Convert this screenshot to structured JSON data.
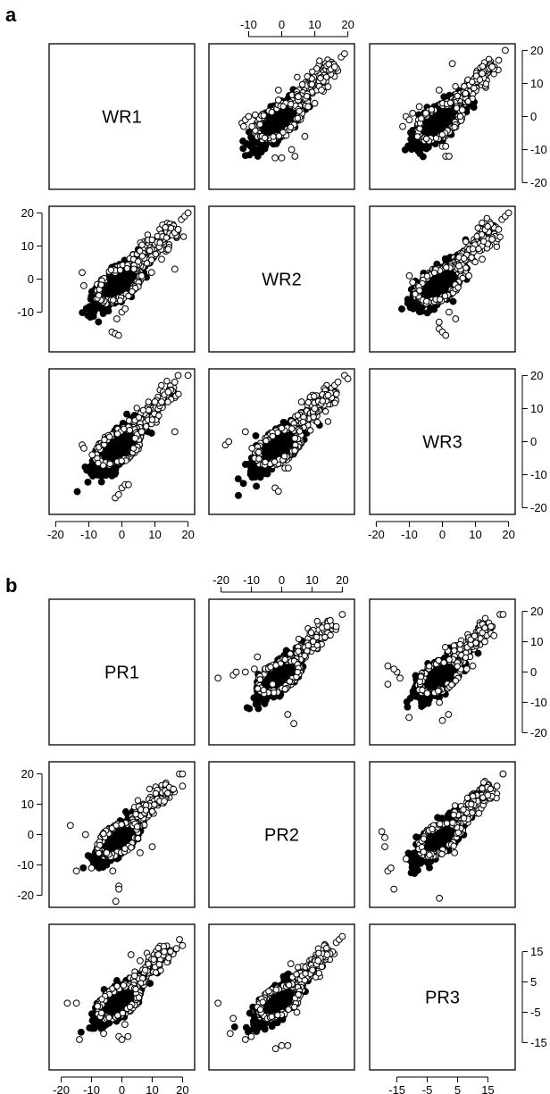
{
  "figure": {
    "panel_letters": [
      "a",
      "b"
    ]
  },
  "chart_data": [
    {
      "type": "scatter",
      "panel": "a",
      "variables": [
        "WR1",
        "WR2",
        "WR3"
      ],
      "layout": "scatterplot-matrix",
      "axis_range": [
        -20,
        20
      ],
      "tick_values": [
        -20,
        -10,
        0,
        10,
        20
      ],
      "tick_labels": [
        "-20",
        "-10",
        "0",
        "10",
        "20"
      ],
      "grid": false,
      "pairs": [
        {
          "row": 0,
          "col": 1,
          "x": "WR2",
          "y": "WR1",
          "x_values": [
            -12,
            -11.5,
            -11,
            -10,
            -9,
            -8,
            5,
            8,
            5,
            0,
            -2,
            7,
            12,
            16,
            18,
            19,
            -1,
            -1,
            3,
            4,
            10,
            14
          ],
          "y_values": [
            -2,
            -3,
            -1,
            0,
            -3,
            0.5,
            5,
            3,
            6,
            -12.5,
            -12.5,
            -6,
            8,
            15,
            18,
            19,
            8,
            5,
            -10,
            -12,
            4,
            9
          ]
        },
        {
          "row": 0,
          "col": 2,
          "x": "WR3",
          "y": "WR1",
          "x_values": [
            -12,
            -11,
            -10,
            -9,
            -7,
            -5,
            1,
            2,
            0,
            1,
            -1,
            7,
            12,
            15,
            17,
            19,
            6,
            3
          ],
          "y_values": [
            -3,
            0,
            -1,
            1,
            3,
            1,
            -12,
            -12,
            -9,
            -9,
            8,
            7,
            13,
            15,
            17,
            20,
            2,
            16
          ]
        },
        {
          "row": 1,
          "col": 0,
          "x": "WR1",
          "y": "WR2",
          "x_values": [
            -12,
            -11.5,
            -3,
            -2,
            -1,
            -1.5,
            0,
            1,
            6,
            9,
            12,
            14,
            16,
            17,
            18,
            19,
            20,
            16
          ],
          "y_values": [
            2,
            -2,
            -16,
            -16.5,
            -17,
            -12,
            -10,
            -9,
            1,
            2,
            6,
            9,
            14,
            15,
            18,
            19,
            20,
            3
          ]
        },
        {
          "row": 1,
          "col": 2,
          "x": "WR3",
          "y": "WR2",
          "x_values": [
            -10,
            -9,
            -1,
            0,
            1,
            -1,
            2,
            4,
            8,
            12,
            15,
            17,
            18,
            19,
            20,
            5
          ],
          "y_values": [
            1,
            -1,
            -15,
            -16,
            -17,
            -13,
            -10,
            -12,
            1,
            6,
            12,
            15,
            18,
            19,
            20,
            4
          ]
        },
        {
          "row": 2,
          "col": 0,
          "x": "WR1",
          "y": "WR3",
          "x_values": [
            -12,
            -11.5,
            -9,
            -2,
            -1,
            0,
            1,
            2,
            4,
            6,
            10,
            12,
            14,
            16,
            17,
            20,
            16
          ],
          "y_values": [
            -1,
            -2,
            -4,
            -17,
            -16,
            -14,
            -13,
            -13,
            1,
            3,
            12,
            12,
            15,
            18,
            20,
            20,
            3
          ]
        },
        {
          "row": 2,
          "col": 1,
          "x": "WR2",
          "y": "WR3",
          "x_values": [
            -17,
            -16,
            -11,
            -9,
            -2,
            -1,
            1,
            2,
            4,
            6,
            10,
            14,
            16,
            17,
            19,
            20
          ],
          "y_values": [
            -1,
            0,
            3,
            -2,
            -14,
            -15,
            -8,
            -8,
            1,
            12,
            10,
            14,
            17,
            18,
            20,
            19
          ]
        }
      ]
    },
    {
      "type": "scatter",
      "panel": "b",
      "variables": [
        "PR1",
        "PR2",
        "PR3"
      ],
      "layout": "scatterplot-matrix",
      "axis_range": [
        -22,
        22
      ],
      "tick_values_top": [
        -20,
        -10,
        0,
        10,
        20
      ],
      "tick_labels_top": [
        "-20",
        "-10",
        "0",
        "10",
        "20"
      ],
      "tick_values_left": [
        -20,
        -10,
        0,
        10,
        20
      ],
      "tick_labels_left": [
        "-20",
        "-10",
        "0",
        "10",
        "20"
      ],
      "tick_values_right_row0": [
        -20,
        -10,
        0,
        10,
        20
      ],
      "tick_labels_right_row0": [
        "-20",
        "-10",
        "0",
        "10",
        "20"
      ],
      "tick_values_bottom_col0": [
        -20,
        -10,
        0,
        10,
        20
      ],
      "tick_labels_bottom_col0": [
        "-20",
        "-10",
        "0",
        "10",
        "20"
      ],
      "tick_values_right_row2": [
        -15,
        -5,
        5,
        15
      ],
      "tick_labels_right_row2": [
        "15",
        "5",
        "-5",
        "-15"
      ],
      "tick_values_bottom_col2": [
        -15,
        -5,
        5,
        15
      ],
      "tick_labels_bottom_col2": [
        "-15",
        "-5",
        "5",
        "15"
      ],
      "grid": false,
      "pairs": [
        {
          "row": 0,
          "col": 1,
          "x": "PR2",
          "y": "PR1",
          "x_values": [
            -21,
            -16,
            -15,
            -12,
            -9,
            -8,
            -3,
            2,
            4,
            15,
            18,
            20,
            16
          ],
          "y_values": [
            -2,
            -1,
            0,
            0,
            1,
            5,
            -4,
            -14,
            -17,
            15,
            15,
            19,
            17
          ]
        },
        {
          "row": 0,
          "col": 2,
          "x": "PR3",
          "y": "PR1",
          "x_values": [
            -18,
            -15,
            -14,
            -18,
            -16,
            -11,
            -5,
            -1,
            0,
            2,
            10,
            14,
            16,
            17,
            19,
            20,
            8
          ],
          "y_values": [
            2,
            0,
            -2,
            -4,
            1,
            -15,
            -7,
            -10,
            -16,
            -14,
            2,
            10,
            15,
            12,
            19,
            19,
            1
          ]
        },
        {
          "row": 1,
          "col": 0,
          "x": "PR1",
          "y": "PR2",
          "x_values": [
            -17,
            -15,
            -12,
            -10,
            -5,
            -1,
            -1,
            -2,
            -3,
            6,
            10,
            14,
            17,
            19,
            20,
            20
          ],
          "y_values": [
            3,
            -12,
            0,
            -11,
            -6,
            -17,
            -18,
            -22,
            -12,
            -6,
            -4,
            11,
            15,
            20,
            16,
            20
          ]
        },
        {
          "row": 1,
          "col": 2,
          "x": "PR3",
          "y": "PR2",
          "x_values": [
            -20,
            -19,
            -19,
            -18,
            -17,
            -16,
            -12,
            -1,
            4,
            12,
            15,
            18,
            20,
            20
          ],
          "y_values": [
            1,
            -1,
            -4,
            -12,
            -11,
            -18,
            -8,
            -21,
            -6,
            7,
            13,
            16,
            20,
            20
          ]
        },
        {
          "row": 2,
          "col": 0,
          "x": "PR1",
          "y": "PR3",
          "x_values": [
            -18,
            -15,
            -14,
            -8,
            -6,
            -1,
            0,
            1,
            2,
            3,
            6,
            12,
            14,
            18,
            20,
            19
          ],
          "y_values": [
            -2,
            -2,
            -14,
            -3,
            -12,
            -13,
            -14,
            -9,
            -13,
            14,
            12,
            14,
            15,
            16,
            17,
            19
          ]
        },
        {
          "row": 2,
          "col": 1,
          "x": "PR2",
          "y": "PR3",
          "x_values": [
            -21,
            -17,
            -16,
            -12,
            -10,
            -2,
            0,
            2,
            3,
            5,
            12,
            15,
            18,
            19,
            20
          ],
          "y_values": [
            -2,
            -12,
            -7,
            -14,
            -13,
            -17,
            -16,
            -16,
            11,
            -5,
            12,
            14,
            18,
            19,
            20
          ]
        }
      ]
    }
  ]
}
